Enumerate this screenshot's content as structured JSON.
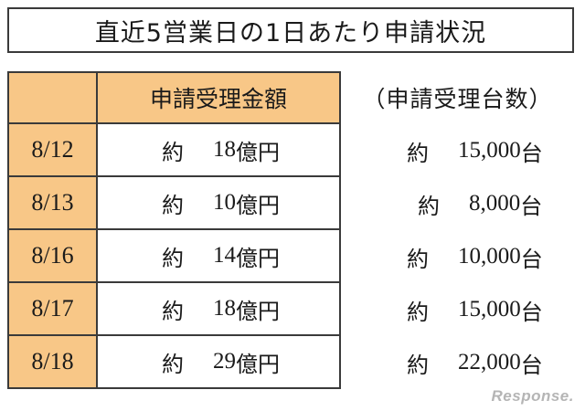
{
  "title": "直近5営業日の1日あたり申請状況",
  "headers": {
    "date": "",
    "amount": "申請受理金額",
    "count": "（申請受理台数）"
  },
  "rows": [
    {
      "date": "8/12",
      "amount_prefix": "約",
      "amount_value": "18",
      "amount_unit": "億円",
      "count_prefix": "約",
      "count_value": "15,000",
      "count_unit": "台"
    },
    {
      "date": "8/13",
      "amount_prefix": "約",
      "amount_value": "10",
      "amount_unit": "億円",
      "count_prefix": "約",
      "count_value": "8,000",
      "count_unit": "台"
    },
    {
      "date": "8/16",
      "amount_prefix": "約",
      "amount_value": "14",
      "amount_unit": "億円",
      "count_prefix": "約",
      "count_value": "10,000",
      "count_unit": "台"
    },
    {
      "date": "8/17",
      "amount_prefix": "約",
      "amount_value": "18",
      "amount_unit": "億円",
      "count_prefix": "約",
      "count_value": "15,000",
      "count_unit": "台"
    },
    {
      "date": "8/18",
      "amount_prefix": "約",
      "amount_value": "29",
      "amount_unit": "億円",
      "count_prefix": "約",
      "count_value": "22,000",
      "count_unit": "台"
    }
  ],
  "watermark": "Response.",
  "colors": {
    "header_fill": "#f8c787",
    "border": "#3a3a3a"
  }
}
